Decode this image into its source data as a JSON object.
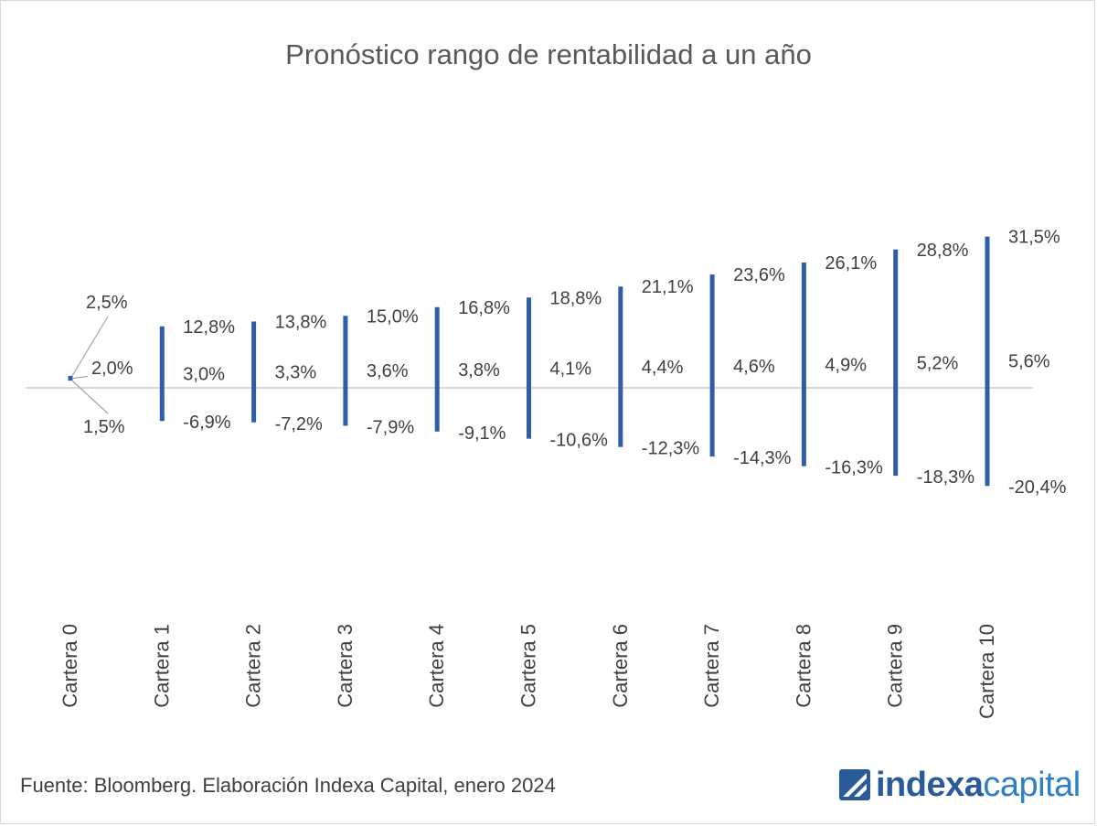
{
  "chart_data": {
    "type": "range",
    "title": "Pronóstico rango de rentabilidad a un año",
    "categories": [
      "Cartera 0",
      "Cartera 1",
      "Cartera 2",
      "Cartera 3",
      "Cartera 4",
      "Cartera 5",
      "Cartera 6",
      "Cartera 7",
      "Cartera 8",
      "Cartera 9",
      "Cartera 10"
    ],
    "series": [
      {
        "name": "",
        "role": "high",
        "values": [
          2.5,
          12.8,
          13.8,
          15.0,
          16.8,
          18.8,
          21.1,
          23.6,
          26.1,
          28.8,
          31.5
        ]
      },
      {
        "name": "",
        "role": "mid",
        "values": [
          2.0,
          3.0,
          3.3,
          3.6,
          3.8,
          4.1,
          4.4,
          4.6,
          4.9,
          5.2,
          5.6
        ]
      },
      {
        "name": "",
        "role": "low",
        "values": [
          1.5,
          -6.9,
          -7.2,
          -7.9,
          -9.1,
          -10.6,
          -12.3,
          -14.3,
          -16.3,
          -18.3,
          -20.4
        ]
      }
    ],
    "labels": {
      "high": [
        "2,5%",
        "12,8%",
        "13,8%",
        "15,0%",
        "16,8%",
        "18,8%",
        "21,1%",
        "23,6%",
        "26,1%",
        "28,8%",
        "31,5%"
      ],
      "mid": [
        "2,0%",
        "3,0%",
        "3,3%",
        "3,6%",
        "3,8%",
        "4,1%",
        "4,4%",
        "4,6%",
        "4,9%",
        "5,2%",
        "5,6%"
      ],
      "low": [
        "1,5%",
        "-6,9%",
        "-7,2%",
        "-7,9%",
        "-9,1%",
        "-10,6%",
        "-12,3%",
        "-14,3%",
        "-16,3%",
        "-18,3%",
        "-20,4%"
      ]
    },
    "xlabel": "",
    "ylabel": "",
    "y_axis_visible": false,
    "grid": false,
    "zero_line": true,
    "legend": "none",
    "colors": {
      "bar": "#2e5ea8",
      "label": "#404040",
      "zero_line": "#bfbfbf",
      "leader_line": "#a6a6a6"
    }
  },
  "footer": {
    "source": "Fuente: Bloomberg. Elaboración Indexa Capital, enero 2024"
  },
  "logo": {
    "word_a": "indexa",
    "word_b": "capital",
    "icon": "indexa-logo-icon",
    "colors": {
      "primary": "#2a5a9a",
      "secondary": "#2e7fc4"
    }
  }
}
